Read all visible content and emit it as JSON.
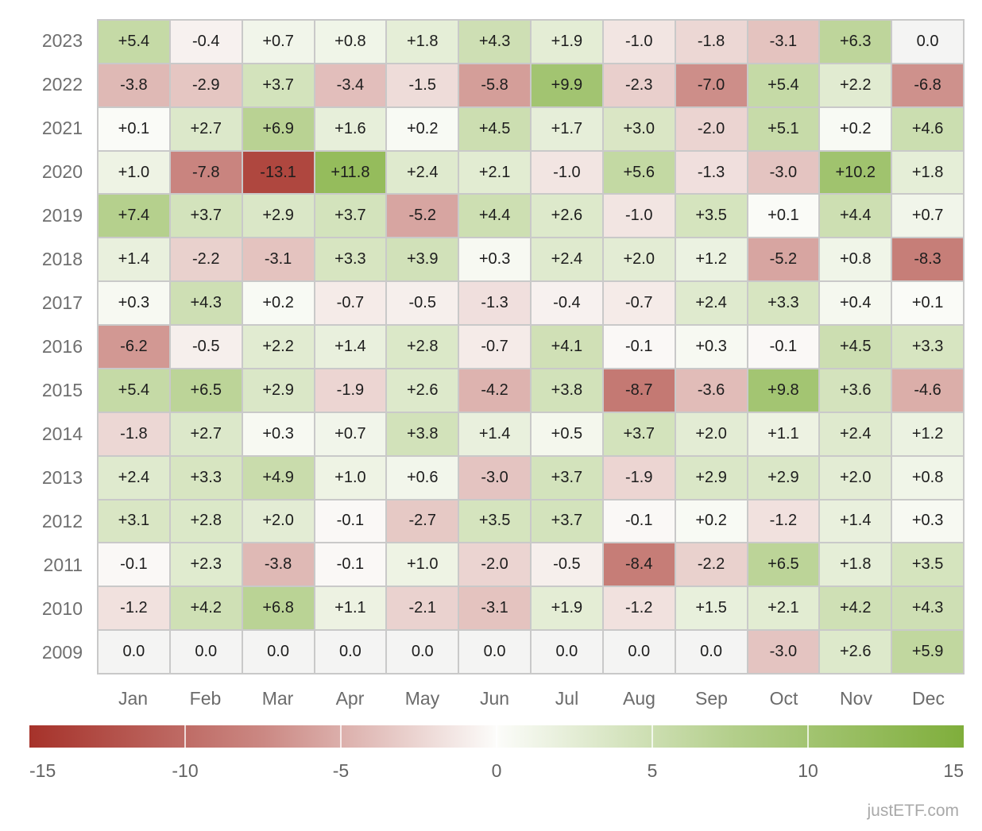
{
  "chart_data": {
    "type": "heatmap",
    "title": "",
    "x_labels": [
      "Jan",
      "Feb",
      "Mar",
      "Apr",
      "May",
      "Jun",
      "Jul",
      "Aug",
      "Sep",
      "Oct",
      "Nov",
      "Dec"
    ],
    "y_labels": [
      "2023",
      "2022",
      "2021",
      "2020",
      "2019",
      "2018",
      "2017",
      "2016",
      "2015",
      "2014",
      "2013",
      "2012",
      "2011",
      "2010",
      "2009"
    ],
    "values": [
      [
        5.4,
        -0.4,
        0.7,
        0.8,
        1.8,
        4.3,
        1.9,
        -1.0,
        -1.8,
        -3.1,
        6.3,
        0.0
      ],
      [
        -3.8,
        -2.9,
        3.7,
        -3.4,
        -1.5,
        -5.8,
        9.9,
        -2.3,
        -7.0,
        5.4,
        2.2,
        -6.8
      ],
      [
        0.1,
        2.7,
        6.9,
        1.6,
        0.2,
        4.5,
        1.7,
        3.0,
        -2.0,
        5.1,
        0.2,
        4.6
      ],
      [
        1.0,
        -7.8,
        -13.1,
        11.8,
        2.4,
        2.1,
        -1.0,
        5.6,
        -1.3,
        -3.0,
        10.2,
        1.8
      ],
      [
        7.4,
        3.7,
        2.9,
        3.7,
        -5.2,
        4.4,
        2.6,
        -1.0,
        3.5,
        0.1,
        4.4,
        0.7
      ],
      [
        1.4,
        -2.2,
        -3.1,
        3.3,
        3.9,
        0.3,
        2.4,
        2.0,
        1.2,
        -5.2,
        0.8,
        -8.3
      ],
      [
        0.3,
        4.3,
        0.2,
        -0.7,
        -0.5,
        -1.3,
        -0.4,
        -0.7,
        2.4,
        3.3,
        0.4,
        0.1
      ],
      [
        -6.2,
        -0.5,
        2.2,
        1.4,
        2.8,
        -0.7,
        4.1,
        -0.1,
        0.3,
        -0.1,
        4.5,
        3.3
      ],
      [
        5.4,
        6.5,
        2.9,
        -1.9,
        2.6,
        -4.2,
        3.8,
        -8.7,
        -3.6,
        9.8,
        3.6,
        -4.6
      ],
      [
        -1.8,
        2.7,
        0.3,
        0.7,
        3.8,
        1.4,
        0.5,
        3.7,
        2.0,
        1.1,
        2.4,
        1.2
      ],
      [
        2.4,
        3.3,
        4.9,
        1.0,
        0.6,
        -3.0,
        3.7,
        -1.9,
        2.9,
        2.9,
        2.0,
        0.8
      ],
      [
        3.1,
        2.8,
        2.0,
        -0.1,
        -2.7,
        3.5,
        3.7,
        -0.1,
        0.2,
        -1.2,
        1.4,
        0.3
      ],
      [
        -0.1,
        2.3,
        -3.8,
        -0.1,
        1.0,
        -2.0,
        -0.5,
        -8.4,
        -2.2,
        6.5,
        1.8,
        3.5
      ],
      [
        -1.2,
        4.2,
        6.8,
        1.1,
        -2.1,
        -3.1,
        1.9,
        -1.2,
        1.5,
        2.1,
        4.2,
        4.3
      ],
      [
        0.0,
        0.0,
        0.0,
        0.0,
        0.0,
        0.0,
        0.0,
        0.0,
        0.0,
        -3.0,
        2.6,
        5.9
      ]
    ],
    "colorbar": {
      "min": -15,
      "max": 15,
      "tick_labels": [
        "-15",
        "-10",
        "-5",
        "0",
        "5",
        "10",
        "15"
      ],
      "tick_values": [
        -15,
        -10,
        -5,
        0,
        5,
        10,
        15
      ],
      "position": "bottom"
    },
    "colors": {
      "negative_end": "#a6322a",
      "zero": "#fcfcfa",
      "positive_end": "#7fae3b",
      "zero_value_cell": "#f4f4f3"
    }
  },
  "watermark": "justETF.com"
}
